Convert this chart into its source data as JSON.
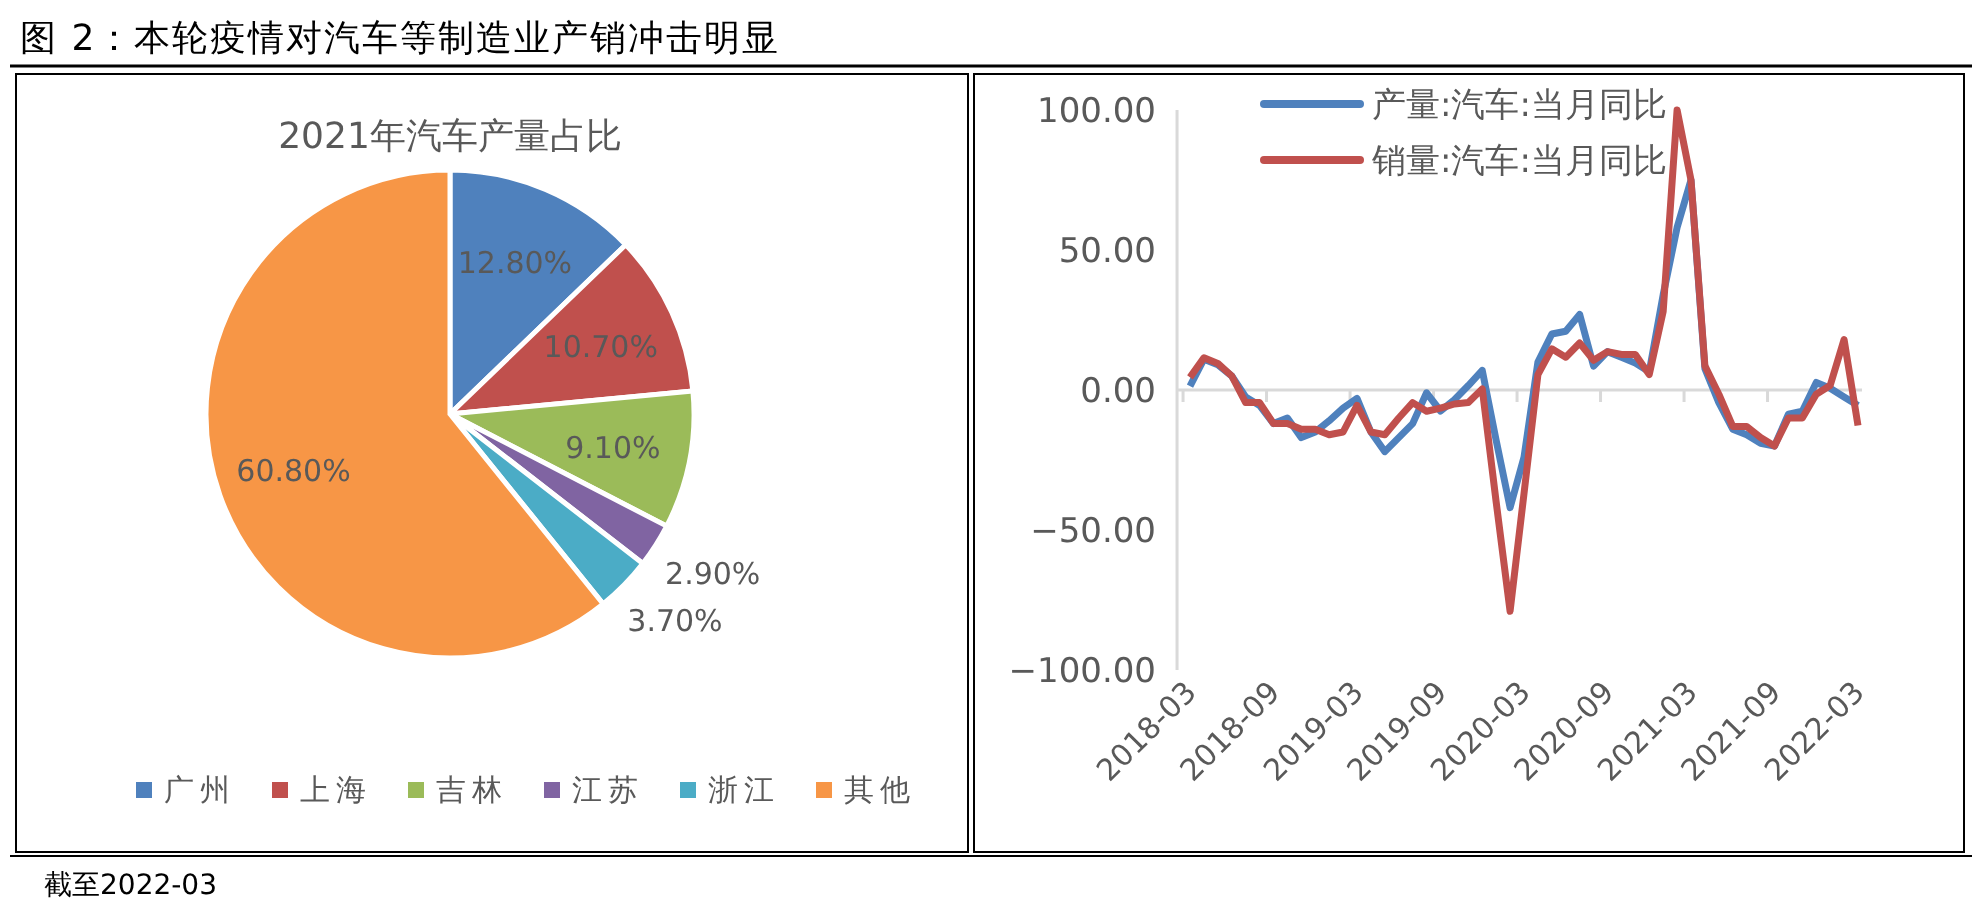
{
  "chart_data": [
    {
      "type": "pie",
      "title": "2021年汽车产量占比",
      "annotations": [
        "图 2：本轮疫情对汽车等制造业产销冲击明显",
        "截至2022-03"
      ],
      "categories": [
        "广州",
        "上海",
        "吉林",
        "江苏",
        "浙江",
        "其他"
      ],
      "values": [
        12.8,
        10.7,
        9.1,
        2.9,
        3.7,
        60.8
      ],
      "value_labels": [
        "12.80%",
        "10.70%",
        "9.10%",
        "2.90%",
        "3.70%",
        "60.80%"
      ],
      "colors": [
        "#4f81bd",
        "#c0504d",
        "#9bbb59",
        "#8064a2",
        "#4bacc6",
        "#f79646"
      ],
      "legend": "bottom"
    },
    {
      "type": "line",
      "legend": "top",
      "categories": [
        "2018-03",
        null,
        null,
        null,
        null,
        null,
        "2018-09",
        null,
        null,
        null,
        null,
        null,
        "2019-03",
        null,
        null,
        null,
        null,
        null,
        "2019-09",
        null,
        null,
        null,
        null,
        null,
        "2020-03",
        null,
        null,
        null,
        null,
        null,
        "2020-09",
        null,
        null,
        null,
        null,
        null,
        "2021-03",
        null,
        null,
        null,
        null,
        null,
        "2021-09",
        null,
        null,
        null,
        null,
        null,
        "2022-03"
      ],
      "ylim": [
        -100,
        100
      ],
      "yticks": [
        {
          "value": -100,
          "label": "−100.00"
        },
        {
          "value": -50,
          "label": "−50.00"
        },
        {
          "value": 0,
          "label": "0.00"
        },
        {
          "value": 50,
          "label": "50.00"
        },
        {
          "value": 100,
          "label": "100.00"
        }
      ],
      "series": [
        {
          "name": "产量:汽车:当月同比",
          "color": "#4f81bd",
          "values": [
            1.4,
            11,
            9,
            5,
            -2.5,
            -5.5,
            -12,
            -10,
            -17,
            -15,
            -11,
            -6.5,
            -3,
            -15,
            -22,
            -17,
            -12,
            -1,
            -7.5,
            -3.5,
            1.6,
            7,
            -18,
            -42,
            -24,
            10,
            20,
            21,
            27,
            8.5,
            13.7,
            11.7,
            9.6,
            6.5,
            34,
            58,
            75,
            7.6,
            -4.5,
            -14,
            -16,
            -19,
            -20,
            -8.6,
            -7.6,
            2.7,
            0.6,
            -2.5,
            -5.5
          ]
        },
        {
          "name": "销量:汽车:当月同比",
          "color": "#c0504d",
          "values": [
            4.5,
            11.5,
            9.5,
            5,
            -4.5,
            -4.5,
            -12,
            -12,
            -14,
            -14,
            -16,
            -15,
            -5.5,
            -15,
            -16,
            -10,
            -4.5,
            -7.6,
            -6.5,
            -5,
            -4.5,
            0.4,
            -40,
            -79,
            -37,
            5.5,
            14.7,
            11.7,
            16.8,
            10.6,
            13.7,
            12.7,
            12.7,
            5.5,
            28,
            100,
            75,
            8.6,
            -1.5,
            -13,
            -13,
            -17,
            -20,
            -10,
            -10,
            -1.5,
            1.6,
            18,
            -12.7
          ]
        }
      ]
    }
  ]
}
